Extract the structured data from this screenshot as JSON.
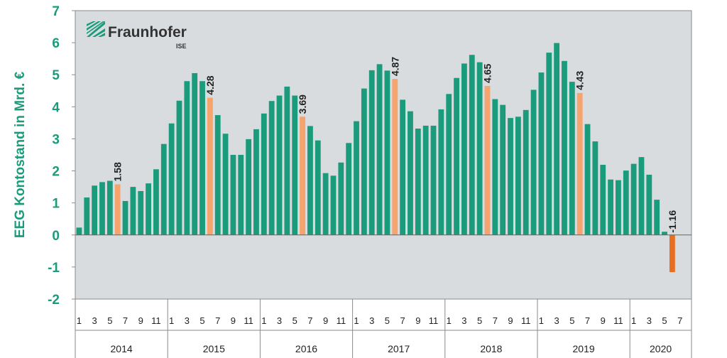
{
  "colors": {
    "bar": "#1a9b7b",
    "highlight": "#f4a46c",
    "negative": "#e86f1f",
    "plot_bg": "#d9dcde",
    "axis_text": "#1a9b7b"
  },
  "logo": {
    "name": "Fraunhofer",
    "sub": "ISE",
    "icon": "fraunhofer-logo-icon"
  },
  "chart_data": {
    "type": "bar",
    "ylabel": "EEG Kontostand in Mrd. €",
    "xlabel": "",
    "ylim": [
      -2,
      7
    ],
    "yticks": [
      7,
      6,
      5,
      4,
      3,
      2,
      1,
      0,
      -1,
      -2
    ],
    "grid": false,
    "month_ticks": [
      "1",
      "3",
      "5",
      "7",
      "9",
      "11",
      "1",
      "3",
      "5",
      "7",
      "9",
      "11",
      "1",
      "3",
      "5",
      "7",
      "9",
      "11",
      "1",
      "3",
      "5",
      "7",
      "9",
      "11",
      "1",
      "3",
      "5",
      "7",
      "9",
      "11",
      "1",
      "3",
      "5",
      "7",
      "9",
      "11",
      "1",
      "3",
      "5",
      "7"
    ],
    "years": [
      "2014",
      "2015",
      "2016",
      "2017",
      "2018",
      "2019",
      "2020"
    ],
    "values": [
      0.23,
      1.17,
      1.54,
      1.65,
      1.69,
      1.58,
      1.06,
      1.5,
      1.37,
      1.61,
      2.05,
      2.84,
      3.48,
      4.19,
      4.8,
      5.05,
      4.8,
      4.28,
      3.74,
      3.16,
      2.5,
      2.5,
      2.99,
      3.3,
      3.79,
      4.18,
      4.35,
      4.63,
      4.35,
      3.69,
      3.4,
      2.95,
      1.93,
      1.85,
      2.26,
      2.87,
      3.55,
      4.57,
      5.14,
      5.33,
      5.13,
      4.87,
      4.22,
      3.86,
      3.32,
      3.41,
      3.41,
      3.92,
      4.4,
      4.9,
      5.35,
      5.62,
      5.39,
      4.65,
      4.24,
      4.06,
      3.65,
      3.69,
      3.9,
      4.53,
      5.07,
      5.69,
      5.99,
      5.43,
      4.78,
      4.43,
      3.46,
      2.92,
      2.19,
      1.73,
      1.71,
      2.01,
      2.22,
      2.43,
      1.88,
      1.1,
      0.1,
      -1.16
    ],
    "highlight_indices": [
      5,
      17,
      29,
      41,
      53,
      65
    ],
    "negative_indices": [
      77
    ],
    "data_labels": [
      {
        "index": 5,
        "text": "1.58"
      },
      {
        "index": 17,
        "text": "4.28"
      },
      {
        "index": 29,
        "text": "3.69"
      },
      {
        "index": 41,
        "text": "4.87"
      },
      {
        "index": 53,
        "text": "4.65"
      },
      {
        "index": 65,
        "text": "4.43"
      },
      {
        "index": 77,
        "text": "-1.16"
      }
    ]
  }
}
